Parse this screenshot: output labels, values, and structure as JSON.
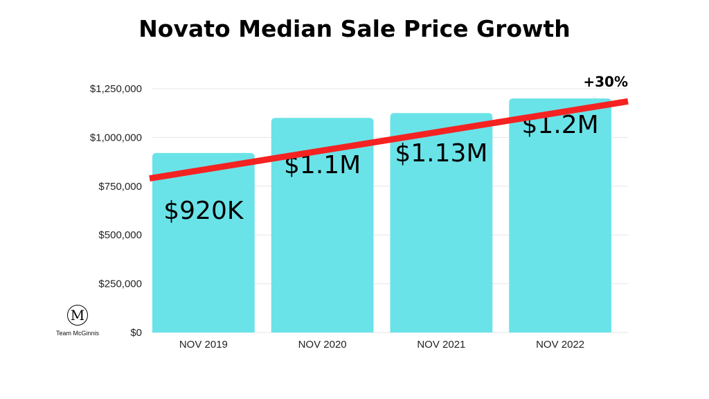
{
  "chart_data": {
    "type": "bar",
    "title": "Novato Median Sale Price Growth",
    "categories": [
      "NOV 2019",
      "NOV 2020",
      "NOV 2021",
      "NOV 2022"
    ],
    "values": [
      920000,
      1100000,
      1125000,
      1200000
    ],
    "data_labels": [
      "$920K",
      "$1.1M",
      "$1.13M",
      "$1.2M"
    ],
    "ylim": [
      0,
      1250000
    ],
    "yticks": [
      0,
      250000,
      500000,
      750000,
      1000000,
      1250000
    ],
    "ytick_labels": [
      "$0",
      "$250,000",
      "$500,000",
      "$750,000",
      "$1,000,000",
      "$1,250,000"
    ],
    "bar_color": "#6ae3e8",
    "trend_line": {
      "from_value": 790000,
      "to_value": 1185000,
      "color": "#f52222"
    },
    "annotation": "+30%",
    "grid": true
  },
  "branding": {
    "logo_letter": "M",
    "name": "Team McGinnis"
  }
}
